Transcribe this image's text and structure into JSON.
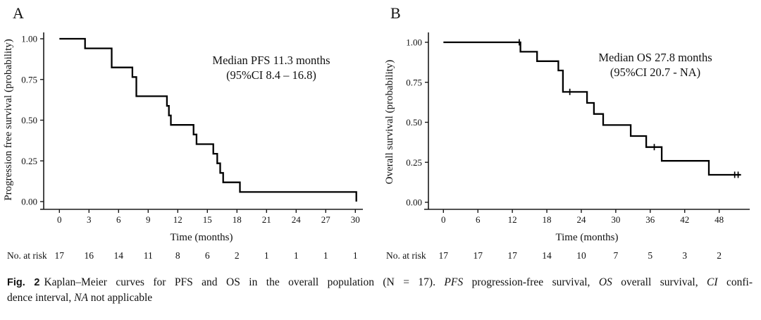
{
  "figure": {
    "caption": {
      "lines": [
        {
          "segments": [
            {
              "text": "Fig. 2",
              "style": "bold"
            },
            {
              "text": "Kaplan–Meier curves for PFS and OS in the overall population (N = 17). ",
              "style": "normal"
            },
            {
              "text": "PFS",
              "style": "italic"
            },
            {
              "text": " progression-free survival, ",
              "style": "normal"
            },
            {
              "text": "OS",
              "style": "italic"
            },
            {
              "text": " overall survival, ",
              "style": "normal"
            },
            {
              "text": "CI",
              "style": "italic"
            },
            {
              "text": " confi-",
              "style": "normal"
            }
          ]
        },
        {
          "segments": [
            {
              "text": "dence interval, ",
              "style": "normal"
            },
            {
              "text": "NA",
              "style": "italic"
            },
            {
              "text": " not applicable",
              "style": "normal"
            }
          ]
        }
      ]
    },
    "colors": {
      "curve": "#000000",
      "axis": "#1a1a1a",
      "text": "#111111",
      "background": "#ffffff"
    }
  },
  "chart_data": [
    {
      "type": "line",
      "subtype": "kaplan-meier-step",
      "panel_label": "A",
      "title": "",
      "xlabel": "Time (months)",
      "ylabel": "Progression free survival (probability)",
      "annotation_line1": "Median PFS  11.3 months",
      "annotation_line2": "(95%CI  8.4 – 16.8)",
      "xlim": [
        0,
        31
      ],
      "ylim": [
        0,
        1
      ],
      "grid": false,
      "legend": false,
      "xticks": [
        0,
        3,
        6,
        9,
        12,
        15,
        18,
        21,
        24,
        27,
        30
      ],
      "ytick_labels": [
        "0.00",
        "0.25",
        "0.50",
        "0.75",
        "1.00"
      ],
      "steps": [
        [
          0,
          1.0
        ],
        [
          2.6,
          0.941
        ],
        [
          5.3,
          0.824
        ],
        [
          7.4,
          0.765
        ],
        [
          7.8,
          0.647
        ],
        [
          10.9,
          0.588
        ],
        [
          11.1,
          0.529
        ],
        [
          11.3,
          0.471
        ],
        [
          13.6,
          0.412
        ],
        [
          13.9,
          0.353
        ],
        [
          15.6,
          0.294
        ],
        [
          16.0,
          0.235
        ],
        [
          16.3,
          0.176
        ],
        [
          16.6,
          0.118
        ],
        [
          18.3,
          0.059
        ],
        [
          30.1,
          0.0
        ]
      ],
      "end_time": 30.1,
      "censors": [],
      "at_risk": {
        "label": "No. at risk",
        "times": [
          0,
          3,
          6,
          9,
          12,
          15,
          18,
          21,
          24,
          27,
          30
        ],
        "values": [
          17,
          16,
          14,
          11,
          8,
          6,
          2,
          1,
          1,
          1,
          1
        ]
      }
    },
    {
      "type": "line",
      "subtype": "kaplan-meier-step",
      "panel_label": "B",
      "title": "",
      "xlabel": "Time (months)",
      "ylabel": "Overall survival (probability)",
      "annotation_line1": "Median OS  27.8 months",
      "annotation_line2": "(95%CI  20.7 - NA)",
      "xlim": [
        0,
        52
      ],
      "ylim": [
        0,
        1
      ],
      "grid": false,
      "legend": false,
      "xticks": [
        0,
        6,
        12,
        18,
        24,
        30,
        36,
        42,
        48
      ],
      "ytick_labels": [
        "0.00",
        "0.25",
        "0.50",
        "0.75",
        "1.00"
      ],
      "steps": [
        [
          0,
          1.0
        ],
        [
          13.4,
          0.941
        ],
        [
          16.3,
          0.882
        ],
        [
          20.0,
          0.824
        ],
        [
          20.8,
          0.69
        ],
        [
          25.0,
          0.621
        ],
        [
          26.2,
          0.552
        ],
        [
          27.8,
          0.483
        ],
        [
          32.6,
          0.414
        ],
        [
          35.3,
          0.345
        ],
        [
          38.0,
          0.259
        ],
        [
          46.2,
          0.172
        ]
      ],
      "end_time": 51.8,
      "censors": [
        [
          13.2,
          1.0
        ],
        [
          22.0,
          0.69
        ],
        [
          36.7,
          0.345
        ],
        [
          50.7,
          0.172
        ],
        [
          51.3,
          0.172
        ]
      ],
      "at_risk": {
        "label": "No. at risk",
        "times": [
          0,
          6,
          12,
          18,
          24,
          30,
          36,
          42,
          48
        ],
        "values": [
          17,
          17,
          17,
          14,
          10,
          7,
          5,
          3,
          2
        ]
      }
    }
  ]
}
